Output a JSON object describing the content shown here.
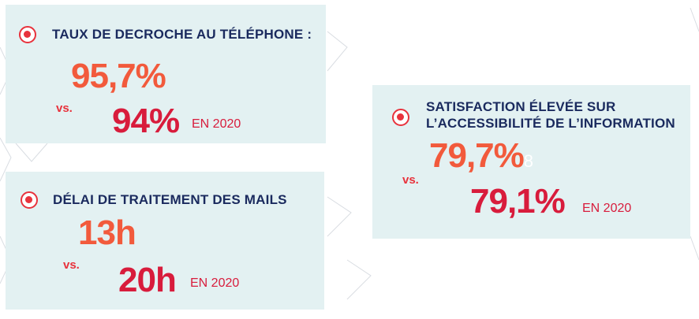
{
  "cards": [
    {
      "title": "TAUX DE DECROCHE AU TÉLÉPHONE :",
      "current_value": "95,7%",
      "vs_label": "vs.",
      "previous_value": "94%",
      "previous_year": "EN 2020"
    },
    {
      "title": "DÉLAI DE TRAITEMENT DES MAILS",
      "current_value": "13h",
      "vs_label": "vs.",
      "previous_value": "20h",
      "previous_year": "EN 2020"
    },
    {
      "title_line1": "SATISFACTION ÉLEVÉE SUR",
      "title_line2": "L’ACCESSIBILITÉ DE L’INFORMATION",
      "current_value": "79,7%",
      "stray_mark": "8",
      "vs_label": "vs.",
      "previous_value": "79,1%",
      "previous_year": "EN 2020"
    }
  ],
  "colors": {
    "card_background": "#e3f1f2",
    "title": "#1a2a5e",
    "current_value": "#f25a3c",
    "previous_value": "#d81c3c",
    "bullet": "#e8323c"
  },
  "icons": [
    "target-bullet-icon"
  ]
}
